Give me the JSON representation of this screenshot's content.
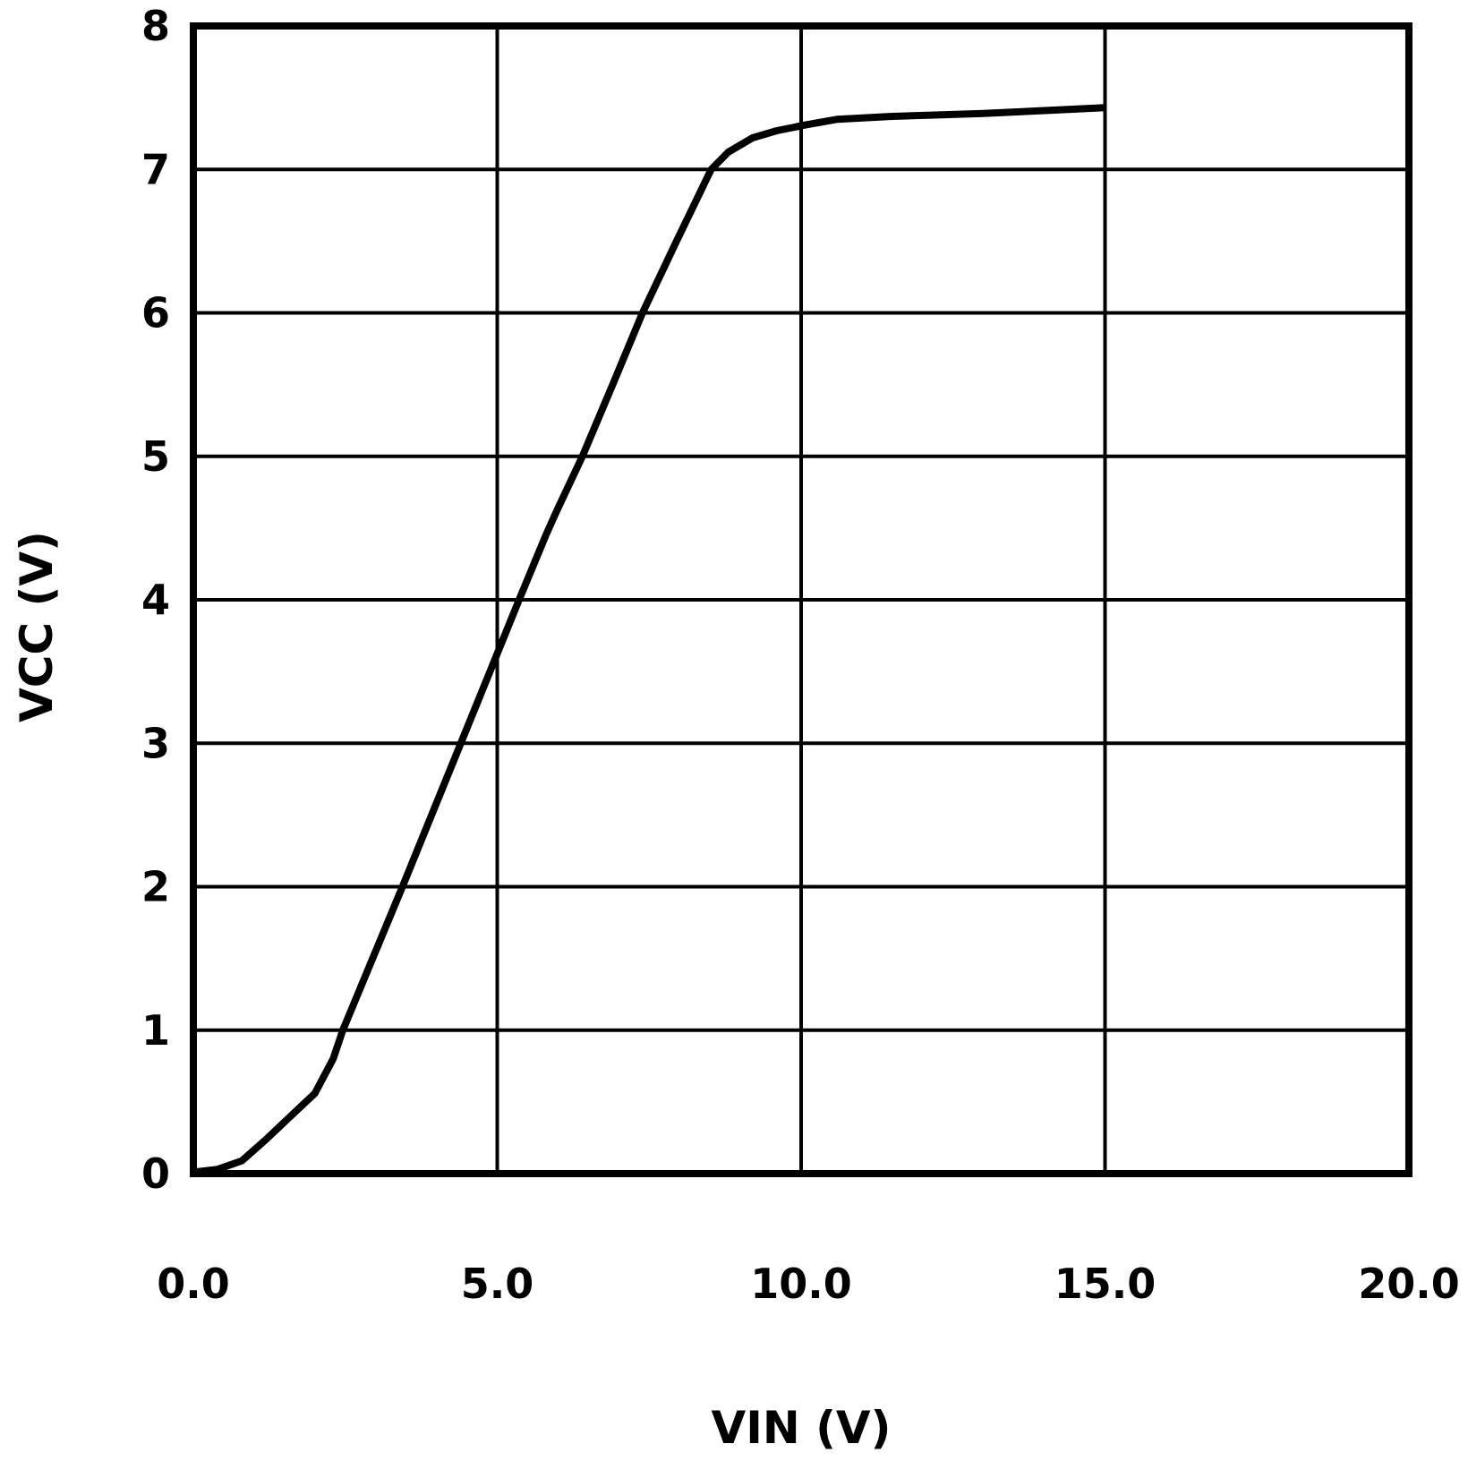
{
  "chart_data": {
    "type": "line",
    "title": "",
    "xlabel": "VIN (V)",
    "ylabel": "VCC (V)",
    "xlim": [
      0,
      20
    ],
    "ylim": [
      0,
      8
    ],
    "x_ticks": [
      0,
      5,
      10,
      15,
      20
    ],
    "x_tick_labels": [
      "0.0",
      "5.0",
      "10.0",
      "15.0",
      "20.0"
    ],
    "y_ticks": [
      0,
      1,
      2,
      3,
      4,
      5,
      6,
      7,
      8
    ],
    "y_tick_labels": [
      "0",
      "1",
      "2",
      "3",
      "4",
      "5",
      "6",
      "7",
      "8"
    ],
    "grid": true,
    "legend": null,
    "series": [
      {
        "name": "VCC",
        "color": "#000000",
        "x": [
          0.0,
          0.4,
          0.8,
          1.2,
          1.6,
          2.0,
          2.3,
          2.46,
          2.95,
          3.44,
          3.92,
          4.4,
          4.88,
          5.36,
          5.8,
          5.98,
          6.4,
          6.9,
          7.39,
          7.95,
          8.52,
          8.8,
          9.2,
          9.6,
          10.07,
          10.6,
          11.5,
          13.0,
          15.0
        ],
        "values": [
          0.01,
          0.03,
          0.09,
          0.24,
          0.4,
          0.56,
          0.8,
          1.0,
          1.5,
          2.0,
          2.5,
          3.0,
          3.5,
          4.0,
          4.45,
          4.62,
          5.0,
          5.5,
          6.0,
          6.5,
          7.0,
          7.12,
          7.22,
          7.27,
          7.31,
          7.35,
          7.37,
          7.39,
          7.43
        ]
      }
    ]
  },
  "colors": {
    "background": "#ffffff",
    "line": "#000000",
    "grid": "#000000"
  }
}
